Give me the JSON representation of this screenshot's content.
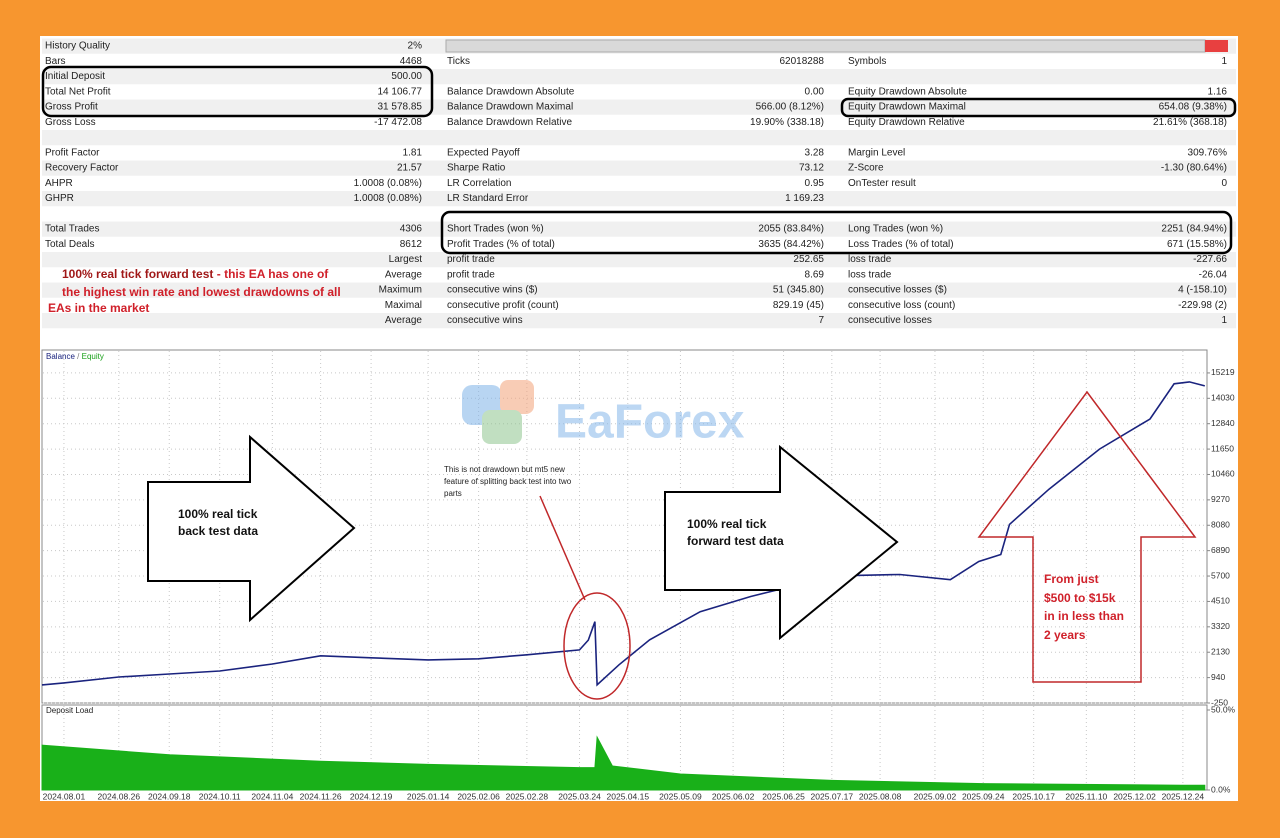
{
  "report": {
    "rows": [
      [
        {
          "label": "History Quality",
          "value": "2%"
        },
        null,
        null
      ],
      [
        {
          "label": "Bars",
          "value": "4468"
        },
        {
          "label": "Ticks",
          "value": "62018288"
        },
        {
          "label": "Symbols",
          "value": "1"
        }
      ],
      [
        {
          "label": "Initial Deposit",
          "value": "500.00"
        },
        null,
        null
      ],
      [
        {
          "label": "Total Net Profit",
          "value": "14 106.77"
        },
        {
          "label": "Balance Drawdown Absolute",
          "value": "0.00"
        },
        {
          "label": "Equity Drawdown Absolute",
          "value": "1.16"
        }
      ],
      [
        {
          "label": "Gross Profit",
          "value": "31 578.85"
        },
        {
          "label": "Balance Drawdown Maximal",
          "value": "566.00 (8.12%)"
        },
        {
          "label": "Equity Drawdown Maximal",
          "value": "654.08 (9.38%)"
        }
      ],
      [
        {
          "label": "Gross Loss",
          "value": "-17 472.08"
        },
        {
          "label": "Balance Drawdown Relative",
          "value": "19.90% (338.18)"
        },
        {
          "label": "Equity Drawdown Relative",
          "value": "21.61% (368.18)"
        }
      ],
      null,
      [
        {
          "label": "Profit Factor",
          "value": "1.81"
        },
        {
          "label": "Expected Payoff",
          "value": "3.28"
        },
        {
          "label": "Margin Level",
          "value": "309.76%"
        }
      ],
      [
        {
          "label": "Recovery Factor",
          "value": "21.57"
        },
        {
          "label": "Sharpe Ratio",
          "value": "73.12"
        },
        {
          "label": "Z-Score",
          "value": "-1.30 (80.64%)"
        }
      ],
      [
        {
          "label": "AHPR",
          "value": "1.0008 (0.08%)"
        },
        {
          "label": "LR Correlation",
          "value": "0.95"
        },
        {
          "label": "OnTester result",
          "value": "0"
        }
      ],
      [
        {
          "label": "GHPR",
          "value": "1.0008 (0.08%)"
        },
        {
          "label": "LR Standard Error",
          "value": "1 169.23"
        },
        null
      ],
      null,
      [
        {
          "label": "Total Trades",
          "value": "4306"
        },
        {
          "label": "Short Trades (won %)",
          "value": "2055 (83.84%)"
        },
        {
          "label": "Long Trades (won %)",
          "value": "2251 (84.94%)"
        }
      ],
      [
        {
          "label": "Total Deals",
          "value": "8612"
        },
        {
          "label": "Profit Trades (% of total)",
          "value": "3635 (84.42%)"
        },
        {
          "label": "Loss Trades (% of total)",
          "value": "671 (15.58%)"
        }
      ],
      [
        {
          "value": "Largest"
        },
        {
          "label": "profit trade",
          "value": "252.65"
        },
        {
          "label": "loss trade",
          "value": "-227.66"
        }
      ],
      [
        {
          "value": "Average"
        },
        {
          "label": "profit trade",
          "value": "8.69"
        },
        {
          "label": "loss trade",
          "value": "-26.04"
        }
      ],
      [
        {
          "value": "Maximum"
        },
        {
          "label": "consecutive wins ($)",
          "value": "51 (345.80)"
        },
        {
          "label": "consecutive losses ($)",
          "value": "4 (-158.10)"
        }
      ],
      [
        {
          "value": "Maximal"
        },
        {
          "label": "consecutive profit (count)",
          "value": "829.19 (45)"
        },
        {
          "label": "consecutive loss (count)",
          "value": "-229.98 (2)"
        }
      ],
      [
        {
          "value": "Average"
        },
        {
          "label": "consecutive wins",
          "value": "7"
        },
        {
          "label": "consecutive losses",
          "value": "1"
        }
      ]
    ],
    "note": {
      "lead": "100% real tick forward test",
      "lines": [
        " - this EA has one of",
        "the highest win rate and lowest drawdowns of all",
        "EAs in the market"
      ]
    }
  },
  "chart": {
    "legend": {
      "balance": "Balance",
      "separator": "/",
      "equity": "Equity"
    },
    "watermark": "EaForex",
    "xlim": [
      "2024.07.22",
      "2026.01.04"
    ],
    "xticks": [
      "2024.08.01",
      "2024.08.26",
      "2024.09.18",
      "2024.10.11",
      "2024.11.04",
      "2024.11.26",
      "2024.12.19",
      "2025.01.14",
      "2025.02.06",
      "2025.02.28",
      "2025.03.24",
      "2025.04.15",
      "2025.05.09",
      "2025.06.02",
      "2025.06.25",
      "2025.07.17",
      "2025.08.08",
      "2025.09.02",
      "2025.09.24",
      "2025.10.17",
      "2025.11.10",
      "2025.12.02",
      "2025.12.24"
    ],
    "ylim": [
      -250,
      16200
    ],
    "yticks": [
      15219,
      14030,
      12840,
      11650,
      10460,
      9270,
      8080,
      6890,
      5700,
      4510,
      3320,
      2130,
      940,
      -250
    ],
    "balance": {
      "color": "#1a237e",
      "x": [
        "2024.07.22",
        "2024.08.01",
        "2024.08.26",
        "2024.09.18",
        "2024.10.11",
        "2024.11.04",
        "2024.11.26",
        "2024.12.19",
        "2025.01.14",
        "2025.02.06",
        "2025.02.28",
        "2025.03.24",
        "2025.03.28",
        "2025.03.31",
        "2025.04.01",
        "2025.04.11",
        "2025.04.25",
        "2025.05.18",
        "2025.06.10",
        "2025.07.02",
        "2025.07.25",
        "2025.08.17",
        "2025.09.09",
        "2025.09.22",
        "2025.10.02",
        "2025.10.06",
        "2025.10.24",
        "2025.11.16",
        "2025.12.09",
        "2025.12.20",
        "2025.12.27",
        "2026.01.03"
      ],
      "values": [
        600,
        690,
        970,
        1110,
        1250,
        1580,
        1960,
        1870,
        1770,
        1820,
        2010,
        2240,
        2700,
        3560,
        600,
        1540,
        2710,
        4030,
        4740,
        5300,
        5720,
        5770,
        5530,
        6380,
        6710,
        8120,
        9770,
        11650,
        13060,
        14710,
        14800,
        14610
      ]
    },
    "deposit_load": {
      "title": "Deposit Load",
      "color": "#19b019",
      "ylim": [
        0,
        50
      ],
      "yticks": [
        {
          "value": 50,
          "label": "50.0%"
        },
        {
          "value": 0,
          "label": "0.0%"
        }
      ],
      "x": [
        "2024.07.22",
        "2024.09.18",
        "2024.11.26",
        "2025.01.14",
        "2025.03.24",
        "2025.03.31",
        "2025.04.01",
        "2025.04.08",
        "2025.05.09",
        "2025.07.17",
        "2025.09.24",
        "2025.12.24",
        "2026.01.03"
      ],
      "values": [
        28,
        22,
        18,
        16,
        14,
        14,
        33,
        15,
        10,
        6,
        4,
        3,
        3
      ]
    },
    "annotations": {
      "back_test": [
        "100% real tick",
        "back test data"
      ],
      "forward_test": [
        "100% real tick",
        "forward test data"
      ],
      "split_note": [
        "This is not drawdown but mt5 new",
        "feature of splitting back test into two",
        "parts"
      ],
      "growth": [
        "From just",
        "$500 to $15k",
        "in in less than",
        "2 years"
      ]
    }
  }
}
